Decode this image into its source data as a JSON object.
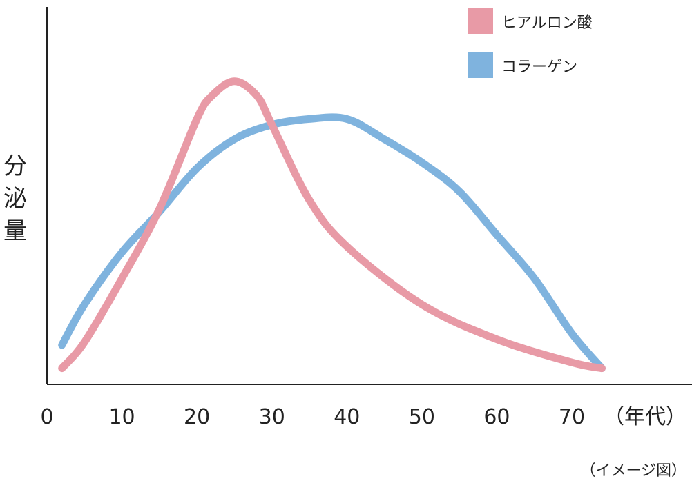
{
  "chart_data": {
    "type": "line",
    "title": "",
    "ylabel_chars": [
      "分",
      "泌",
      "量"
    ],
    "x_unit_label": "（年代）",
    "note": "（イメージ図）",
    "xlim": [
      0,
      75
    ],
    "ylim": [
      0,
      100
    ],
    "xticks": [
      "0",
      "10",
      "20",
      "30",
      "40",
      "50",
      "60",
      "70"
    ],
    "legend_position": "top-right",
    "series": [
      {
        "name": "ヒアルロン酸",
        "color": "#e89aa6",
        "x": [
          2,
          5,
          10,
          15,
          20,
          22,
          25,
          28,
          30,
          35,
          40,
          50,
          60,
          70,
          74
        ],
        "y": [
          2,
          11,
          33,
          57,
          88,
          96,
          101,
          96,
          86,
          60,
          44,
          24,
          12,
          4,
          2
        ]
      },
      {
        "name": "コラーゲン",
        "color": "#7fb3de",
        "x": [
          2,
          5,
          10,
          15,
          20,
          25,
          30,
          35,
          40,
          45,
          50,
          55,
          60,
          65,
          70,
          74
        ],
        "y": [
          10,
          24,
          42,
          56,
          71,
          81,
          86,
          88,
          88,
          81,
          73,
          63,
          48,
          33,
          14,
          2
        ]
      }
    ]
  }
}
